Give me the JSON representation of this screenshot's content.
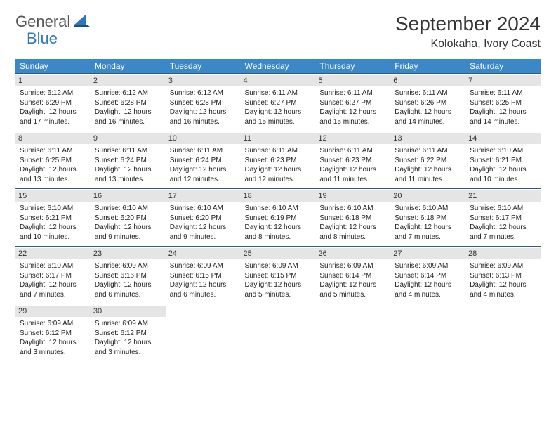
{
  "brand": {
    "part1": "General",
    "part2": "Blue"
  },
  "title": "September 2024",
  "location": "Kolokaha, Ivory Coast",
  "day_headers": [
    "Sunday",
    "Monday",
    "Tuesday",
    "Wednesday",
    "Thursday",
    "Friday",
    "Saturday"
  ],
  "colors": {
    "header_bg": "#3b88c8",
    "header_text": "#ffffff",
    "row_border": "#2f5a88",
    "daynum_bg": "#e5e5e5",
    "logo_gray": "#555555",
    "logo_blue": "#2f77bc"
  },
  "weeks": [
    [
      {
        "day": "1",
        "sunrise": "Sunrise: 6:12 AM",
        "sunset": "Sunset: 6:29 PM",
        "daylight1": "Daylight: 12 hours",
        "daylight2": "and 17 minutes."
      },
      {
        "day": "2",
        "sunrise": "Sunrise: 6:12 AM",
        "sunset": "Sunset: 6:28 PM",
        "daylight1": "Daylight: 12 hours",
        "daylight2": "and 16 minutes."
      },
      {
        "day": "3",
        "sunrise": "Sunrise: 6:12 AM",
        "sunset": "Sunset: 6:28 PM",
        "daylight1": "Daylight: 12 hours",
        "daylight2": "and 16 minutes."
      },
      {
        "day": "4",
        "sunrise": "Sunrise: 6:11 AM",
        "sunset": "Sunset: 6:27 PM",
        "daylight1": "Daylight: 12 hours",
        "daylight2": "and 15 minutes."
      },
      {
        "day": "5",
        "sunrise": "Sunrise: 6:11 AM",
        "sunset": "Sunset: 6:27 PM",
        "daylight1": "Daylight: 12 hours",
        "daylight2": "and 15 minutes."
      },
      {
        "day": "6",
        "sunrise": "Sunrise: 6:11 AM",
        "sunset": "Sunset: 6:26 PM",
        "daylight1": "Daylight: 12 hours",
        "daylight2": "and 14 minutes."
      },
      {
        "day": "7",
        "sunrise": "Sunrise: 6:11 AM",
        "sunset": "Sunset: 6:25 PM",
        "daylight1": "Daylight: 12 hours",
        "daylight2": "and 14 minutes."
      }
    ],
    [
      {
        "day": "8",
        "sunrise": "Sunrise: 6:11 AM",
        "sunset": "Sunset: 6:25 PM",
        "daylight1": "Daylight: 12 hours",
        "daylight2": "and 13 minutes."
      },
      {
        "day": "9",
        "sunrise": "Sunrise: 6:11 AM",
        "sunset": "Sunset: 6:24 PM",
        "daylight1": "Daylight: 12 hours",
        "daylight2": "and 13 minutes."
      },
      {
        "day": "10",
        "sunrise": "Sunrise: 6:11 AM",
        "sunset": "Sunset: 6:24 PM",
        "daylight1": "Daylight: 12 hours",
        "daylight2": "and 12 minutes."
      },
      {
        "day": "11",
        "sunrise": "Sunrise: 6:11 AM",
        "sunset": "Sunset: 6:23 PM",
        "daylight1": "Daylight: 12 hours",
        "daylight2": "and 12 minutes."
      },
      {
        "day": "12",
        "sunrise": "Sunrise: 6:11 AM",
        "sunset": "Sunset: 6:23 PM",
        "daylight1": "Daylight: 12 hours",
        "daylight2": "and 11 minutes."
      },
      {
        "day": "13",
        "sunrise": "Sunrise: 6:11 AM",
        "sunset": "Sunset: 6:22 PM",
        "daylight1": "Daylight: 12 hours",
        "daylight2": "and 11 minutes."
      },
      {
        "day": "14",
        "sunrise": "Sunrise: 6:10 AM",
        "sunset": "Sunset: 6:21 PM",
        "daylight1": "Daylight: 12 hours",
        "daylight2": "and 10 minutes."
      }
    ],
    [
      {
        "day": "15",
        "sunrise": "Sunrise: 6:10 AM",
        "sunset": "Sunset: 6:21 PM",
        "daylight1": "Daylight: 12 hours",
        "daylight2": "and 10 minutes."
      },
      {
        "day": "16",
        "sunrise": "Sunrise: 6:10 AM",
        "sunset": "Sunset: 6:20 PM",
        "daylight1": "Daylight: 12 hours",
        "daylight2": "and 9 minutes."
      },
      {
        "day": "17",
        "sunrise": "Sunrise: 6:10 AM",
        "sunset": "Sunset: 6:20 PM",
        "daylight1": "Daylight: 12 hours",
        "daylight2": "and 9 minutes."
      },
      {
        "day": "18",
        "sunrise": "Sunrise: 6:10 AM",
        "sunset": "Sunset: 6:19 PM",
        "daylight1": "Daylight: 12 hours",
        "daylight2": "and 8 minutes."
      },
      {
        "day": "19",
        "sunrise": "Sunrise: 6:10 AM",
        "sunset": "Sunset: 6:18 PM",
        "daylight1": "Daylight: 12 hours",
        "daylight2": "and 8 minutes."
      },
      {
        "day": "20",
        "sunrise": "Sunrise: 6:10 AM",
        "sunset": "Sunset: 6:18 PM",
        "daylight1": "Daylight: 12 hours",
        "daylight2": "and 7 minutes."
      },
      {
        "day": "21",
        "sunrise": "Sunrise: 6:10 AM",
        "sunset": "Sunset: 6:17 PM",
        "daylight1": "Daylight: 12 hours",
        "daylight2": "and 7 minutes."
      }
    ],
    [
      {
        "day": "22",
        "sunrise": "Sunrise: 6:10 AM",
        "sunset": "Sunset: 6:17 PM",
        "daylight1": "Daylight: 12 hours",
        "daylight2": "and 7 minutes."
      },
      {
        "day": "23",
        "sunrise": "Sunrise: 6:09 AM",
        "sunset": "Sunset: 6:16 PM",
        "daylight1": "Daylight: 12 hours",
        "daylight2": "and 6 minutes."
      },
      {
        "day": "24",
        "sunrise": "Sunrise: 6:09 AM",
        "sunset": "Sunset: 6:15 PM",
        "daylight1": "Daylight: 12 hours",
        "daylight2": "and 6 minutes."
      },
      {
        "day": "25",
        "sunrise": "Sunrise: 6:09 AM",
        "sunset": "Sunset: 6:15 PM",
        "daylight1": "Daylight: 12 hours",
        "daylight2": "and 5 minutes."
      },
      {
        "day": "26",
        "sunrise": "Sunrise: 6:09 AM",
        "sunset": "Sunset: 6:14 PM",
        "daylight1": "Daylight: 12 hours",
        "daylight2": "and 5 minutes."
      },
      {
        "day": "27",
        "sunrise": "Sunrise: 6:09 AM",
        "sunset": "Sunset: 6:14 PM",
        "daylight1": "Daylight: 12 hours",
        "daylight2": "and 4 minutes."
      },
      {
        "day": "28",
        "sunrise": "Sunrise: 6:09 AM",
        "sunset": "Sunset: 6:13 PM",
        "daylight1": "Daylight: 12 hours",
        "daylight2": "and 4 minutes."
      }
    ],
    [
      {
        "day": "29",
        "sunrise": "Sunrise: 6:09 AM",
        "sunset": "Sunset: 6:12 PM",
        "daylight1": "Daylight: 12 hours",
        "daylight2": "and 3 minutes."
      },
      {
        "day": "30",
        "sunrise": "Sunrise: 6:09 AM",
        "sunset": "Sunset: 6:12 PM",
        "daylight1": "Daylight: 12 hours",
        "daylight2": "and 3 minutes."
      },
      null,
      null,
      null,
      null,
      null
    ]
  ]
}
